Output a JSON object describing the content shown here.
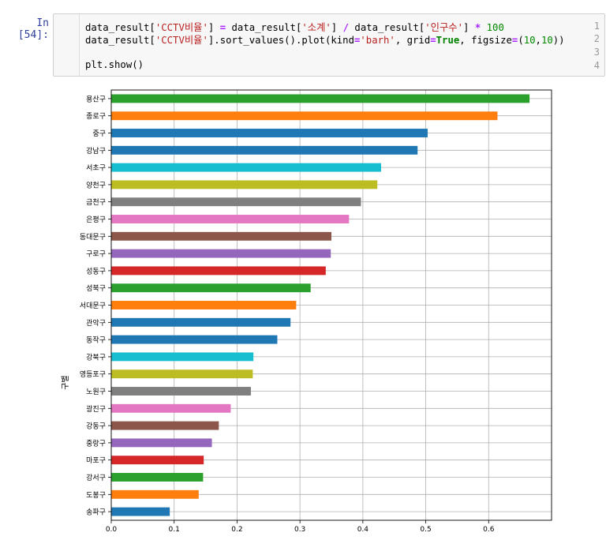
{
  "prompt": "In [54]:",
  "code_lines": [
    {
      "num": "1",
      "parts": [
        {
          "t": "data_result[",
          "c": ""
        },
        {
          "t": "'CCTV비율'",
          "c": "s"
        },
        {
          "t": "] ",
          "c": ""
        },
        {
          "t": "=",
          "c": "o"
        },
        {
          "t": " data_result[",
          "c": ""
        },
        {
          "t": "'소계'",
          "c": "s"
        },
        {
          "t": "] ",
          "c": ""
        },
        {
          "t": "/",
          "c": "o"
        },
        {
          "t": " data_result[",
          "c": ""
        },
        {
          "t": "'인구수'",
          "c": "s"
        },
        {
          "t": "] ",
          "c": ""
        },
        {
          "t": "*",
          "c": "o"
        },
        {
          "t": " ",
          "c": ""
        },
        {
          "t": "100",
          "c": "n"
        }
      ]
    },
    {
      "num": "2",
      "parts": [
        {
          "t": "data_result[",
          "c": ""
        },
        {
          "t": "'CCTV비율'",
          "c": "s"
        },
        {
          "t": "].sort_values().plot(kind",
          "c": ""
        },
        {
          "t": "=",
          "c": "o"
        },
        {
          "t": "'barh'",
          "c": "s"
        },
        {
          "t": ", grid",
          "c": ""
        },
        {
          "t": "=",
          "c": "o"
        },
        {
          "t": "True",
          "c": "k"
        },
        {
          "t": ", figsize",
          "c": ""
        },
        {
          "t": "=",
          "c": "o"
        },
        {
          "t": "(",
          "c": ""
        },
        {
          "t": "10",
          "c": "n"
        },
        {
          "t": ",",
          "c": ""
        },
        {
          "t": "10",
          "c": "n"
        },
        {
          "t": "))",
          "c": ""
        }
      ]
    },
    {
      "num": "3",
      "parts": []
    },
    {
      "num": "4",
      "parts": [
        {
          "t": "plt.show",
          "c": ""
        },
        {
          "t": "()",
          "c": ""
        }
      ]
    }
  ],
  "chart_data": {
    "type": "bar",
    "orientation": "horizontal",
    "title": "",
    "xlabel": "",
    "ylabel": "구별",
    "xlim": [
      0,
      0.7
    ],
    "xticks": [
      "0.0",
      "0.1",
      "0.2",
      "0.3",
      "0.4",
      "0.5",
      "0.6"
    ],
    "grid": true,
    "categories": [
      "용산구",
      "종로구",
      "중구",
      "강남구",
      "서초구",
      "양천구",
      "금천구",
      "은평구",
      "동대문구",
      "구로구",
      "성동구",
      "성북구",
      "서대문구",
      "관악구",
      "동작구",
      "강북구",
      "영등포구",
      "노원구",
      "광진구",
      "강동구",
      "중랑구",
      "마포구",
      "강서구",
      "도봉구",
      "송파구"
    ],
    "values": [
      0.665,
      0.614,
      0.503,
      0.487,
      0.429,
      0.423,
      0.397,
      0.378,
      0.35,
      0.349,
      0.341,
      0.317,
      0.294,
      0.285,
      0.264,
      0.226,
      0.225,
      0.222,
      0.19,
      0.171,
      0.16,
      0.147,
      0.146,
      0.139,
      0.093
    ],
    "colors": [
      "#2ca02c",
      "#ff7f0e",
      "#1f77b4",
      "#1f77b4",
      "#17becf",
      "#bcbd22",
      "#7f7f7f",
      "#e377c2",
      "#8c564b",
      "#9467bd",
      "#d62728",
      "#2ca02c",
      "#ff7f0e",
      "#1f77b4",
      "#1f77b4",
      "#17becf",
      "#bcbd22",
      "#7f7f7f",
      "#e377c2",
      "#8c564b",
      "#9467bd",
      "#d62728",
      "#2ca02c",
      "#ff7f0e",
      "#1f77b4"
    ]
  }
}
